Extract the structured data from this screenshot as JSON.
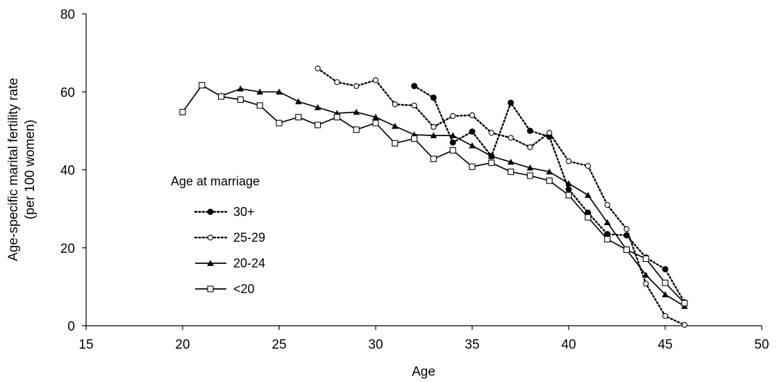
{
  "chart_data": {
    "type": "line",
    "xlabel": "Age",
    "ylabel": "Age-specific marital fertility rate",
    "ylabel_line2": "(per 100 women)",
    "xlim": [
      15,
      50
    ],
    "ylim": [
      0,
      80
    ],
    "xticks": [
      15,
      20,
      25,
      30,
      35,
      40,
      45,
      50
    ],
    "yticks": [
      0,
      20,
      40,
      60,
      80
    ],
    "grid": false,
    "legend": {
      "title": "Age at marriage",
      "placement": "left-middle"
    },
    "series": [
      {
        "name": "30+",
        "style": "dotted",
        "marker": "filled-circle",
        "x": [
          32,
          33,
          34,
          35,
          36,
          37,
          38,
          39,
          40,
          41,
          42,
          43,
          44,
          45,
          46
        ],
        "y": [
          61.5,
          58.5,
          47,
          49.8,
          43.5,
          57.2,
          50,
          48.5,
          35,
          29,
          23.5,
          23.2,
          17.5,
          14.5,
          6
        ]
      },
      {
        "name": "25-29",
        "style": "dotted",
        "marker": "open-circle",
        "x": [
          27,
          28,
          29,
          30,
          31,
          32,
          33,
          34,
          35,
          36,
          37,
          38,
          39,
          40,
          41,
          42,
          43,
          44,
          45,
          46
        ],
        "y": [
          66,
          62.5,
          61.5,
          63,
          56.8,
          56.5,
          51,
          53.8,
          54,
          49.5,
          48.2,
          45.8,
          49.5,
          42.2,
          41,
          31,
          24.8,
          10.8,
          2.5,
          0.2
        ]
      },
      {
        "name": "20-24",
        "style": "solid",
        "marker": "filled-triangle",
        "x": [
          22,
          23,
          24,
          25,
          26,
          27,
          28,
          29,
          30,
          31,
          32,
          33,
          34,
          35,
          36,
          37,
          38,
          39,
          40,
          41,
          42,
          43,
          44,
          45,
          46
        ],
        "y": [
          59,
          60.8,
          60,
          60,
          57.5,
          56,
          54.5,
          54.8,
          53.5,
          51.2,
          49,
          48.8,
          48.8,
          46.2,
          43.5,
          42,
          40.5,
          39.5,
          36.5,
          33.5,
          26.5,
          19.5,
          13,
          8,
          5
        ]
      },
      {
        "name": "<20",
        "style": "solid",
        "marker": "open-square",
        "x": [
          20,
          21,
          22,
          23,
          24,
          25,
          26,
          27,
          28,
          29,
          30,
          31,
          32,
          33,
          34,
          35,
          36,
          37,
          38,
          39,
          40,
          41,
          42,
          43,
          44,
          45,
          46
        ],
        "y": [
          54.8,
          61.7,
          58.8,
          58,
          56.5,
          52,
          53.5,
          51.5,
          53.5,
          50.3,
          52,
          46.8,
          48,
          42.8,
          45,
          40.8,
          41.8,
          39.5,
          38.5,
          37.2,
          33.5,
          27.8,
          22.2,
          19.5,
          17.2,
          11,
          5.8
        ]
      }
    ]
  }
}
